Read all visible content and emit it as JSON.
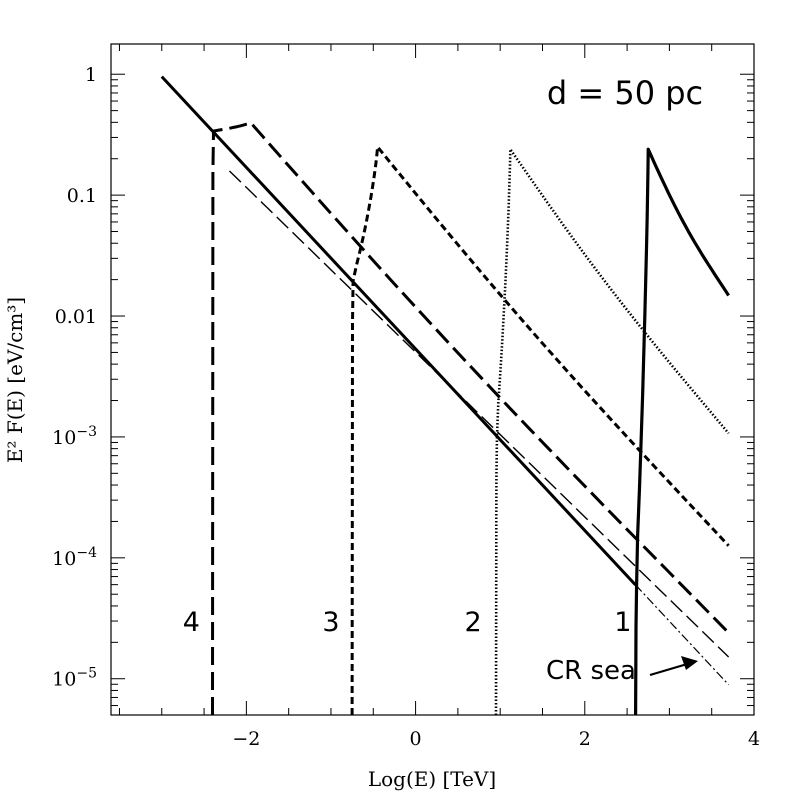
{
  "chart_data": {
    "type": "line",
    "title": "",
    "annotation_title": "d = 50 pc",
    "xlabel": "Log(E) [TeV]",
    "ylabel": "E² F(E) [eV/cm³]",
    "xlim": [
      -3.6,
      4.0
    ],
    "ylim_log10": [
      -5.3,
      0.25
    ],
    "x_ticks": [
      {
        "value": -2,
        "label": "−2"
      },
      {
        "value": 0,
        "label": "0"
      },
      {
        "value": 2,
        "label": "2"
      },
      {
        "value": 4,
        "label": "4"
      }
    ],
    "y_ticks": [
      {
        "value_log10": 0,
        "base": "1",
        "exp": ""
      },
      {
        "value_log10": -1,
        "base": "0.1",
        "exp": ""
      },
      {
        "value_log10": -2,
        "base": "0.01",
        "exp": ""
      },
      {
        "value_log10": -3,
        "base": "10",
        "exp": "−3"
      },
      {
        "value_log10": -4,
        "base": "10",
        "exp": "−4"
      },
      {
        "value_log10": -5,
        "base": "10",
        "exp": "−5"
      }
    ],
    "cr_sea": {
      "name": "CR sea",
      "x": [
        -3.0,
        3.7
      ],
      "y_log10": [
        -0.02,
        -5.05
      ]
    },
    "series": [
      {
        "name": "1",
        "style": "solid",
        "x_cut": 2.6,
        "peak_x": 2.75,
        "peak_log10": -0.62,
        "end_x": 3.7,
        "end_log10": -1.83,
        "label_x": 2.45,
        "label_log10": -4.53
      },
      {
        "name": "2",
        "style": "dotted",
        "x_cut": 0.95,
        "peak_x": 1.12,
        "peak_log10": -0.62,
        "end_x": 3.7,
        "end_log10": -2.97,
        "label_x": 0.68,
        "label_log10": -4.53
      },
      {
        "name": "3",
        "style": "short-dash",
        "x_cut": -0.75,
        "peak_x": -0.45,
        "peak_log10": -0.6,
        "end_x": 3.7,
        "end_log10": -3.9,
        "label_x": -1.0,
        "label_log10": -4.53
      },
      {
        "name": "4",
        "style": "long-dash",
        "x_cut": -2.4,
        "peak_x": -1.95,
        "peak_log10": -0.4,
        "end_x": 3.7,
        "end_log10": -4.62,
        "label_x": -2.65,
        "label_log10": -4.53
      }
    ],
    "long_dash_thin": {
      "x": [
        -2.2,
        3.7
      ],
      "y_log10": [
        -0.8,
        -4.82
      ]
    }
  }
}
